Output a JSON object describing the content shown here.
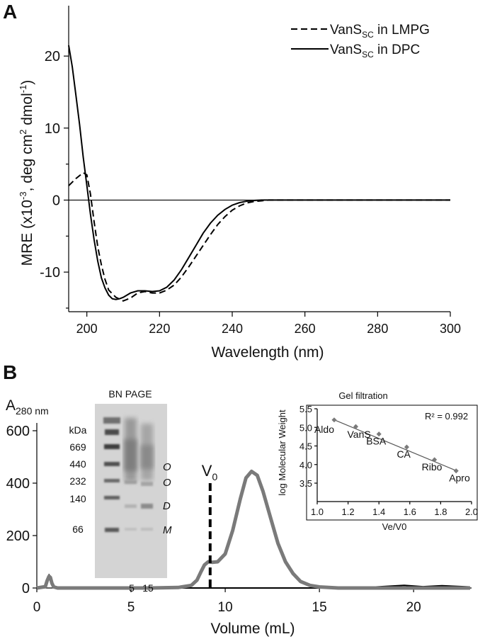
{
  "chart_data": [
    {
      "panel_label": "A",
      "type": "line",
      "xlabel": "Wavelength (nm)",
      "ylabel": "MRE (x10-3, deg cm2 dmol-1)",
      "ylabel_parts": {
        "pre": "MRE (x10",
        "exp1": "-3",
        "mid": ", deg cm",
        "exp2": "2",
        "post": " dmol",
        "exp3": "-1",
        "close": ")"
      },
      "xlim": [
        195,
        300
      ],
      "ylim": [
        -15.5,
        27
      ],
      "xticks": [
        "200",
        "220",
        "240",
        "260",
        "280",
        "300"
      ],
      "yticks": [
        "20",
        "10",
        "0",
        "-10"
      ],
      "legend": [
        {
          "name": "VanS",
          "sub": "SC",
          "suffix": " in LMPG",
          "style": "dashed"
        },
        {
          "name": "VanS",
          "sub": "SC",
          "suffix": " in DPC",
          "style": "solid"
        }
      ],
      "series": [
        {
          "name": "VanS_SC in LMPG",
          "style": "dashed",
          "x": [
            195,
            197,
            199,
            200,
            201,
            202,
            203,
            204,
            205,
            206,
            208,
            210,
            212,
            214,
            216,
            218,
            220,
            222,
            224,
            226,
            228,
            230,
            232,
            234,
            236,
            238,
            240,
            242,
            244,
            246,
            248,
            250,
            255,
            260,
            270,
            280,
            290,
            300
          ],
          "y": [
            2.0,
            3.0,
            3.8,
            3.5,
            0.8,
            -3.0,
            -6.5,
            -9.0,
            -11.0,
            -12.5,
            -13.5,
            -14.0,
            -13.6,
            -12.9,
            -12.7,
            -12.9,
            -12.9,
            -12.5,
            -11.8,
            -10.7,
            -9.3,
            -7.8,
            -6.3,
            -4.8,
            -3.4,
            -2.3,
            -1.4,
            -0.8,
            -0.4,
            -0.2,
            -0.1,
            0.0,
            0.0,
            0.0,
            0.0,
            0.0,
            0.0,
            0.0
          ]
        },
        {
          "name": "VanS_SC in DPC",
          "style": "solid",
          "x": [
            195,
            196,
            197,
            198,
            199,
            200,
            201,
            202,
            203,
            204,
            205,
            206,
            207,
            208,
            209,
            210,
            212,
            214,
            216,
            218,
            220,
            222,
            224,
            226,
            228,
            230,
            232,
            234,
            236,
            238,
            240,
            242,
            244,
            246,
            248,
            250,
            255,
            260,
            270,
            280,
            290,
            300
          ],
          "y": [
            21.5,
            18.5,
            14.5,
            10.5,
            6.0,
            2.0,
            -2.0,
            -5.5,
            -8.5,
            -10.8,
            -12.2,
            -13.2,
            -13.7,
            -13.8,
            -13.7,
            -13.5,
            -12.9,
            -12.6,
            -12.6,
            -12.7,
            -12.6,
            -12.1,
            -11.1,
            -9.7,
            -8.0,
            -6.3,
            -4.6,
            -3.2,
            -2.1,
            -1.3,
            -0.7,
            -0.35,
            -0.15,
            -0.05,
            0.0,
            0.0,
            0.0,
            0.0,
            0.0,
            0.0,
            0.0,
            0.0
          ]
        }
      ]
    },
    {
      "panel_label": "B",
      "type": "line",
      "xlabel": "Volume (mL)",
      "ylabel": "A",
      "ylabel_sub": "280 nm",
      "xlim": [
        0,
        23
      ],
      "ylim": [
        0,
        600
      ],
      "xticks": [
        "0",
        "5",
        "10",
        "15",
        "20"
      ],
      "yticks": [
        "600",
        "400",
        "200",
        "0"
      ],
      "void_label": "V",
      "void_sub": "0",
      "void_volume": 9.2,
      "series": [
        {
          "name": "gray trace",
          "x": [
            0,
            0.45,
            0.55,
            0.65,
            0.72,
            0.8,
            0.9,
            1.1,
            2,
            4,
            6,
            7.5,
            8.2,
            8.5,
            8.7,
            8.9,
            9.1,
            9.3,
            9.6,
            10.0,
            10.4,
            10.8,
            11.1,
            11.4,
            11.7,
            12.0,
            12.4,
            12.8,
            13.2,
            13.6,
            14.0,
            14.5,
            15.0,
            16,
            17,
            18,
            20,
            23
          ],
          "y": [
            0,
            5,
            28,
            45,
            40,
            18,
            4,
            0,
            0,
            0,
            0,
            2,
            10,
            30,
            60,
            88,
            100,
            98,
            100,
            130,
            220,
            340,
            420,
            445,
            430,
            370,
            270,
            170,
            100,
            55,
            25,
            10,
            4,
            0,
            0,
            0,
            0,
            0
          ]
        },
        {
          "name": "black trace",
          "x": [
            0,
            0.45,
            0.55,
            0.65,
            0.72,
            0.8,
            0.9,
            1.1,
            8,
            17,
            18.5,
            19.5,
            20.5,
            21.5,
            23
          ],
          "y": [
            0,
            6,
            32,
            50,
            44,
            20,
            4,
            0,
            0,
            0,
            6,
            10,
            5,
            9,
            4
          ]
        }
      ]
    },
    {
      "type": "scatter",
      "title": "Gel filtration",
      "xlabel": "Ve/V0",
      "ylabel": "log Molecular Weight",
      "xlim": [
        1.0,
        2.0
      ],
      "ylim": [
        3.0,
        5.5
      ],
      "xticks": [
        "1.0",
        "1.2",
        "1.4",
        "1.6",
        "1.8",
        "2.0"
      ],
      "yticks": [
        "5.5",
        "5.0",
        "4.5",
        "4.0",
        "3.5"
      ],
      "annotation": "R² = 0.992",
      "fit": {
        "x": [
          1.1,
          1.91
        ],
        "y": [
          5.22,
          3.82
        ]
      },
      "points": [
        {
          "label": "Aldo",
          "x": 1.11,
          "y": 5.2
        },
        {
          "label": "VanS",
          "x": 1.25,
          "y": 5.02
        },
        {
          "label": "BSA",
          "x": 1.4,
          "y": 4.82
        },
        {
          "label": "CA",
          "x": 1.58,
          "y": 4.47
        },
        {
          "label": "Ribo",
          "x": 1.76,
          "y": 4.13
        },
        {
          "label": "Apro",
          "x": 1.9,
          "y": 3.83
        }
      ]
    }
  ],
  "gel": {
    "title": "BN PAGE",
    "unit": "kDa",
    "markers": [
      "669",
      "440",
      "232",
      "140",
      "66"
    ],
    "lanes": [
      "5",
      "15"
    ],
    "species": [
      "O",
      "O",
      "D",
      "M"
    ]
  }
}
